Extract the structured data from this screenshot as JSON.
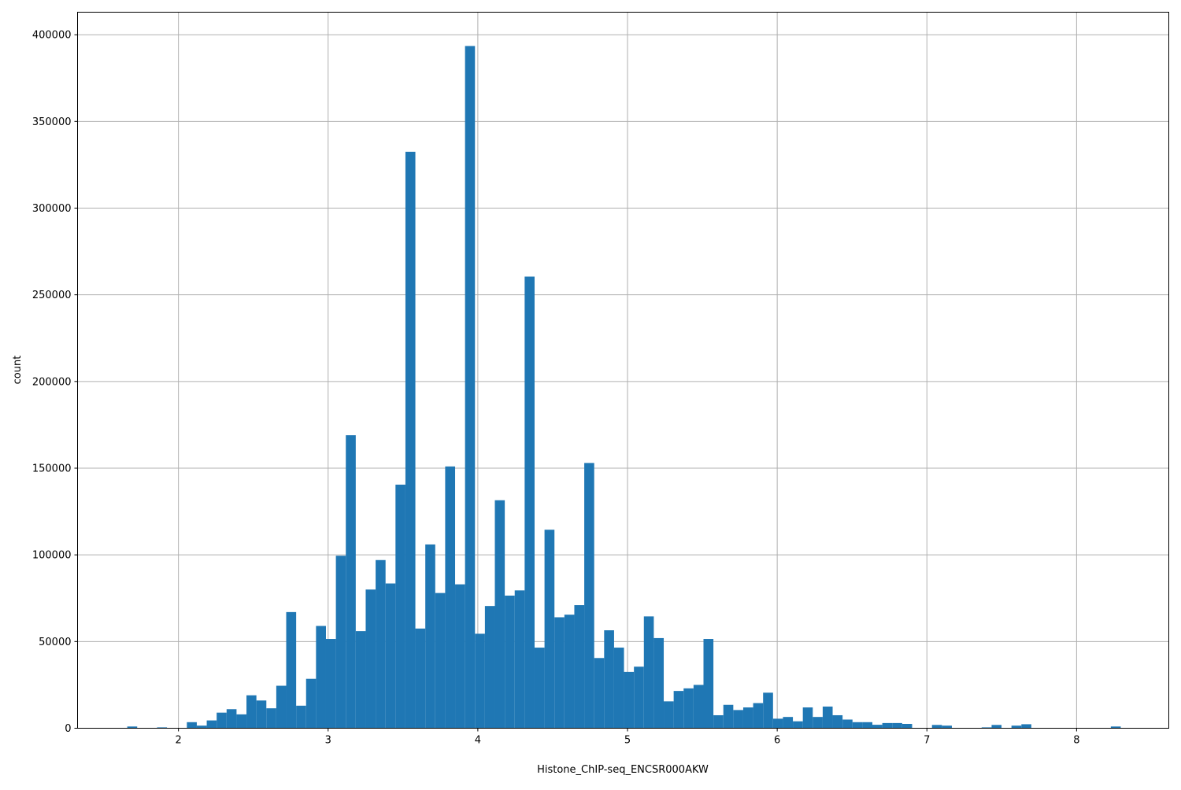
{
  "chart_data": {
    "type": "bar",
    "subtype": "histogram",
    "xlabel": "Histone_ChIP-seq_ENCSR000AKW",
    "ylabel": "count",
    "bin_start": 1.658,
    "bin_width": 0.06637,
    "values": [
      1000,
      0,
      0,
      500,
      0,
      0,
      3500,
      1500,
      4500,
      9000,
      11000,
      8000,
      19000,
      16000,
      11500,
      24500,
      67000,
      13000,
      28500,
      59000,
      51500,
      99500,
      169000,
      56000,
      80000,
      97000,
      83500,
      140500,
      332500,
      57500,
      106000,
      78000,
      151000,
      83000,
      393500,
      54500,
      70500,
      131500,
      76500,
      79500,
      260500,
      46500,
      114500,
      64000,
      65500,
      71000,
      153000,
      40500,
      56500,
      46500,
      32500,
      35500,
      64500,
      52000,
      15500,
      21500,
      23000,
      25000,
      51500,
      7500,
      13500,
      10500,
      12000,
      14500,
      20500,
      5500,
      6500,
      4000,
      12000,
      6500,
      12500,
      7500,
      5000,
      3500,
      3500,
      2000,
      3000,
      3000,
      2500,
      0,
      0,
      1900,
      1500,
      0,
      0,
      0,
      500,
      1900,
      0,
      1500,
      2300,
      0,
      0,
      0,
      0,
      0,
      0,
      0,
      0,
      1000
    ],
    "xlim": [
      1.326,
      8.616
    ],
    "ylim": [
      0,
      413000
    ],
    "xticks": [
      2,
      3,
      4,
      5,
      6,
      7,
      8
    ],
    "xtick_labels": [
      "2",
      "3",
      "4",
      "5",
      "6",
      "7",
      "8"
    ],
    "yticks": [
      0,
      50000,
      100000,
      150000,
      200000,
      250000,
      300000,
      350000,
      400000
    ],
    "ytick_labels": [
      "0",
      "50000",
      "100000",
      "150000",
      "200000",
      "250000",
      "300000",
      "350000",
      "400000"
    ],
    "grid": true,
    "bar_color": "#1f77b4",
    "grid_color": "#b0b0b0"
  }
}
